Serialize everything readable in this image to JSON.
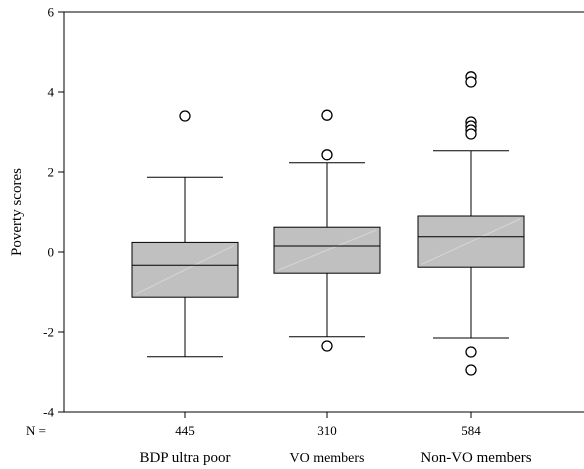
{
  "chart_data": {
    "type": "box",
    "ylabel": "Poverty scores",
    "ylim": [
      -4,
      6
    ],
    "yticks": [
      -4,
      -2,
      0,
      2,
      4,
      6
    ],
    "n_prefix": "N =",
    "grid": false,
    "box_color": "#c0c0c0",
    "groups": [
      {
        "label": "BDP ultra poor",
        "n": "445",
        "whisker_low": -2.62,
        "q1": -1.13,
        "median": -0.33,
        "q3": 0.24,
        "whisker_high": 1.87,
        "outliers": [
          3.4
        ]
      },
      {
        "label": "VO members",
        "n": "310",
        "whisker_low": -2.12,
        "q1": -0.53,
        "median": 0.15,
        "q3": 0.62,
        "whisker_high": 2.23,
        "outliers": [
          3.42,
          2.43,
          -2.35
        ]
      },
      {
        "label": "Non-VO members",
        "n": "584",
        "whisker_low": -2.15,
        "q1": -0.38,
        "median": 0.38,
        "q3": 0.9,
        "whisker_high": 2.53,
        "outliers": [
          4.38,
          4.25,
          3.25,
          3.15,
          3.05,
          2.95,
          -2.5,
          -2.95
        ]
      }
    ]
  }
}
